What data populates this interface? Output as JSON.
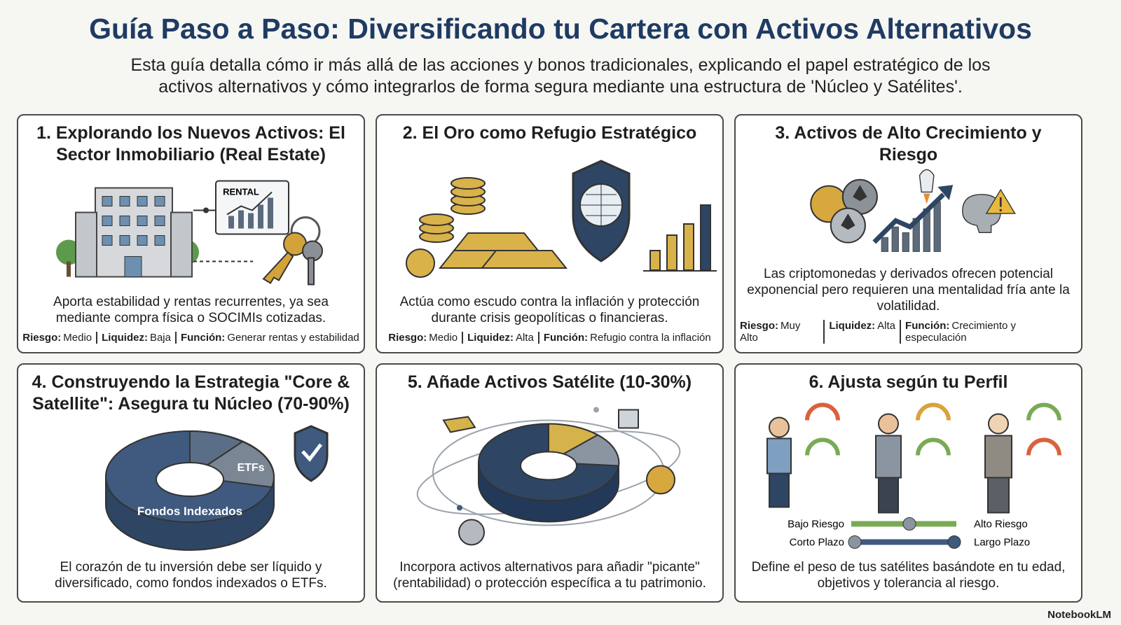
{
  "header": {
    "title": "Guía Paso a Paso: Diversificando tu Cartera con Activos Alternativos",
    "subtitle": "Esta guía detalla cómo ir más allá de las acciones y bonos tradicionales, explicando el papel estratégico de los activos alternativos y cómo integrarlos de forma segura mediante una estructura de 'Núcleo y Satélites'."
  },
  "cards": [
    {
      "title": "1. Explorando los Nuevos Activos: El Sector Inmobiliario (Real Estate)",
      "illustration_labels": [
        "RENTAL"
      ],
      "description": "Aporta estabilidad y rentas recurrentes, ya sea mediante compra física o SOCIMIs cotizadas.",
      "facts": [
        {
          "label": "Riesgo:",
          "value": "Medio"
        },
        {
          "label": "Liquidez:",
          "value": "Baja"
        },
        {
          "label": "Función:",
          "value": "Generar rentas y estabilidad"
        }
      ]
    },
    {
      "title": "2. El Oro como Refugio Estratégico",
      "description": "Actúa como escudo contra la inflación y protección durante crisis geopolíticas o financieras.",
      "facts": [
        {
          "label": "Riesgo:",
          "value": "Medio"
        },
        {
          "label": "Liquidez:",
          "value": "Alta"
        },
        {
          "label": "Función:",
          "value": "Refugio contra la inflación"
        }
      ]
    },
    {
      "title": "3. Activos de Alto Crecimiento y Riesgo",
      "description": "Las criptomonedas y derivados ofrecen potencial exponencial pero requieren una mentalidad fría ante la volatilidad.",
      "facts": [
        {
          "label": "Riesgo:",
          "value": "Muy Alto"
        },
        {
          "label": "Liquidez:",
          "value": "Alta"
        },
        {
          "label": "Función:",
          "value": "Crecimiento y especulación"
        }
      ]
    },
    {
      "title": "4. Construyendo la Estrategia \"Core & Satellite\": Asegura tu Núcleo (70-90%)",
      "illustration_labels": [
        "ETFs",
        "Fondos Indexados"
      ],
      "description": "El corazón de tu inversión debe ser líquido y diversificado, como fondos indexados o ETFs."
    },
    {
      "title": "5. Añade Activos Satélite (10-30%)",
      "description": "Incorpora activos alternativos para añadir \"picante\" (rentabilidad) o protección específica a tu patrimonio."
    },
    {
      "title": "6. Ajusta según tu Perfil",
      "illustration_labels": [
        "Bajo Riesgo",
        "Alto Riesgo",
        "Corto Plazo",
        "Largo Plazo"
      ],
      "description": "Define el peso de tus satélites basándote en tu edad, objetivos y tolerancia al riesgo."
    }
  ],
  "footer": {
    "brand": "NotebookLM"
  }
}
